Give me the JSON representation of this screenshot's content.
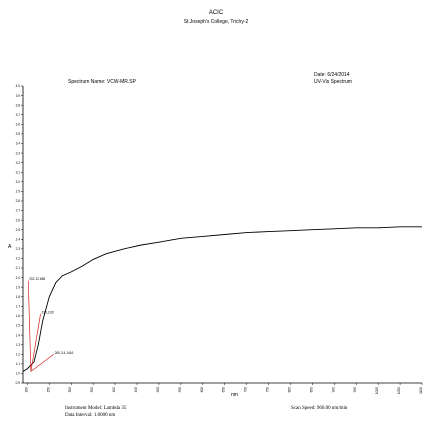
{
  "header": {
    "title": "ACIC",
    "subtitle": "St.Joseph's College, Trichy-2",
    "spectrum_name": "Spectrum Name: VCW-MR.SP",
    "date": "Date: 6/24/2014",
    "spectrum_type": "UV-Vis Spectrum"
  },
  "footer": {
    "instrument_model": "Instrument Model: Lambda 35",
    "data_interval": "Data Interval: 1.0000 nm",
    "scan_speed": "Scan Speed: 960.00 nm/min"
  },
  "colors": {
    "curve": "#000000",
    "marker_lines": "#d42020",
    "axis": "#000000"
  },
  "chart_data": {
    "type": "line",
    "title": "",
    "xlabel": "nm",
    "ylabel": "A",
    "xlim": [
      190,
      1100
    ],
    "ylim": [
      0.9,
      4.0
    ],
    "x_ticks": [
      200,
      250,
      300,
      350,
      400,
      450,
      500,
      550,
      600,
      650,
      700,
      750,
      800,
      850,
      900,
      950,
      1000,
      1050,
      1100
    ],
    "y_ticks": [
      0.9,
      1.0,
      1.1,
      1.2,
      1.3,
      1.4,
      1.5,
      1.6,
      1.7,
      1.8,
      1.9,
      2.0,
      2.1,
      2.2,
      2.3,
      2.4,
      2.5,
      2.6,
      2.7,
      2.8,
      2.9,
      3.0,
      3.1,
      3.2,
      3.3,
      3.4,
      3.5,
      3.6,
      3.7,
      3.8,
      3.9,
      4.0
    ],
    "grid": false,
    "legend": "none",
    "series": [
      {
        "x": [
          190,
          200,
          215,
          225,
          235,
          250,
          265,
          280,
          300,
          325,
          350,
          380,
          420,
          460,
          500,
          550,
          600,
          650,
          700,
          750,
          800,
          850,
          900,
          950,
          1000,
          1050,
          1100
        ],
        "y": [
          1.02,
          1.05,
          1.12,
          1.3,
          1.55,
          1.8,
          1.95,
          2.02,
          2.06,
          2.12,
          2.19,
          2.25,
          2.3,
          2.34,
          2.37,
          2.41,
          2.43,
          2.45,
          2.47,
          2.48,
          2.49,
          2.5,
          2.51,
          2.52,
          2.52,
          2.53,
          2.53
        ]
      }
    ],
    "peak_labels": [
      {
        "text": "202,12.658",
        "x": 202,
        "y": 1.97
      },
      {
        "text": "230,2.60",
        "x": 230,
        "y": 1.62
      },
      {
        "text": "260,3.4,1416",
        "x": 260,
        "y": 1.2
      }
    ]
  }
}
